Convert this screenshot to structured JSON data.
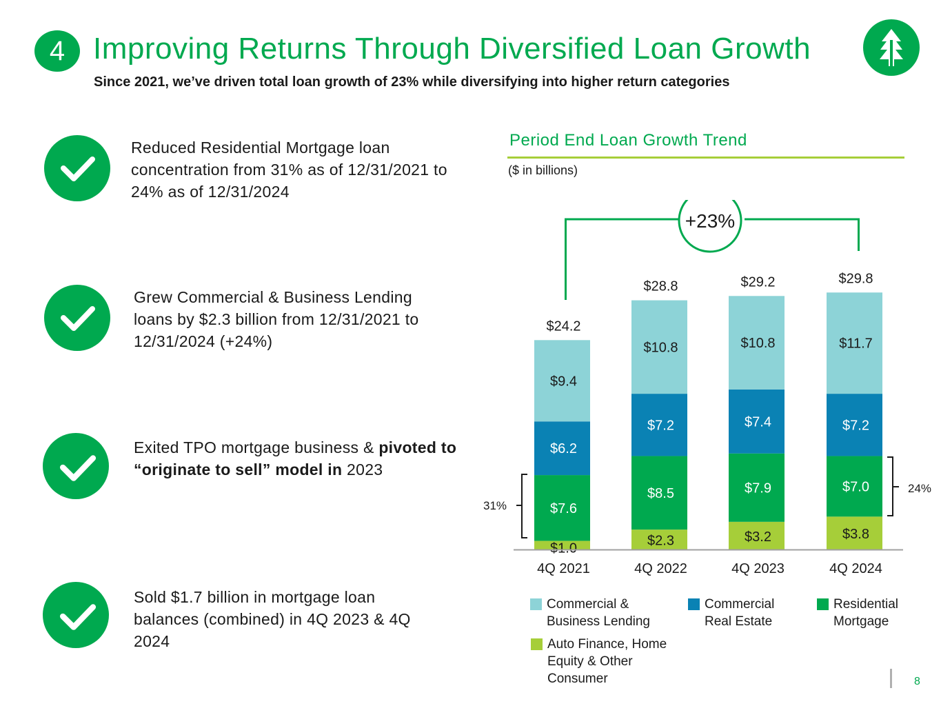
{
  "header": {
    "section_number": "4",
    "title": "Improving Returns Through Diversified Loan Growth",
    "subtitle": "Since 2021, we’ve driven total loan growth of 23% while diversifying into higher return categories"
  },
  "points": [
    {
      "text": "Reduced Residential Mortgage loan concentration from 31% as of 12/31/2021 to 24% as of 12/31/2024"
    },
    {
      "text": "Grew Commercial & Business Lending loans by $2.3 billion from 12/31/2021 to 12/31/2024 (+24%)"
    },
    {
      "text_before": "Exited TPO mortgage business & ",
      "text_bold": "pivoted to “originate to sell” model in",
      "text_after": " 2023"
    },
    {
      "text": "Sold $1.7 billion in mortgage loan balances (combined) in 4Q 2023 & 4Q 2024"
    }
  ],
  "chart_data": {
    "type": "bar",
    "stacked": true,
    "title": "Period End Loan Growth Trend",
    "units_note": "($ in billions)",
    "categories": [
      "4Q 2021",
      "4Q 2022",
      "4Q 2023",
      "4Q 2024"
    ],
    "series": [
      {
        "name": "Auto Finance, Home Equity & Other Consumer",
        "values": [
          1.0,
          2.3,
          3.2,
          3.8
        ],
        "labels": [
          "$1.0",
          "$2.3",
          "$3.2",
          "$3.8"
        ],
        "color": "#a6ce39",
        "label_color": "#1a1a1a"
      },
      {
        "name": "Residential Mortgage",
        "values": [
          7.6,
          8.5,
          7.9,
          7.0
        ],
        "labels": [
          "$7.6",
          "$8.5",
          "$7.9",
          "$7.0"
        ],
        "color": "#00a94f",
        "label_color": "#ffffff"
      },
      {
        "name": "Commercial Real Estate",
        "values": [
          6.2,
          7.2,
          7.4,
          7.2
        ],
        "labels": [
          "$6.2",
          "$7.2",
          "$7.4",
          "$7.2"
        ],
        "color": "#0a82b4",
        "label_color": "#ffffff"
      },
      {
        "name": "Commercial & Business Lending",
        "values": [
          9.4,
          10.8,
          10.8,
          11.7
        ],
        "labels": [
          "$9.4",
          "$10.8",
          "$10.8",
          "$11.7"
        ],
        "color": "#8dd3d7",
        "label_color": "#1a1a1a"
      }
    ],
    "totals": [
      24.2,
      28.8,
      29.2,
      29.8
    ],
    "total_labels": [
      "$24.2",
      "$28.8",
      "$29.2",
      "$29.8"
    ],
    "growth_annotation": "+23%",
    "left_bracket_label": "31%",
    "right_bracket_label": "24%",
    "legend": [
      {
        "line1": "Commercial &",
        "line2": "Business Lending",
        "line3": "",
        "color": "#8dd3d7"
      },
      {
        "line1": "Commercial",
        "line2": "Real Estate",
        "line3": "",
        "color": "#0a82b4"
      },
      {
        "line1": "Residential",
        "line2": "Mortgage",
        "line3": "",
        "color": "#00a94f"
      },
      {
        "line1": "Auto Finance, Home",
        "line2": "Equity & Other",
        "line3": "Consumer",
        "color": "#a6ce39"
      }
    ],
    "accent_color": "#00a94f",
    "rule_color": "#a6ce39"
  },
  "footer": {
    "page_number": "8"
  }
}
